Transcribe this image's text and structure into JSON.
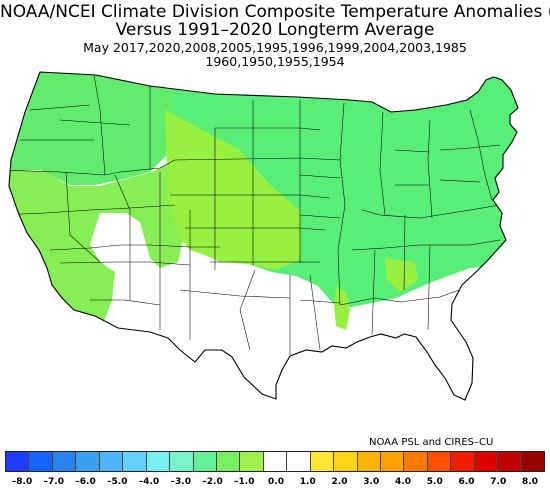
{
  "header": {
    "title_line1": "NOAA/NCEI Climate Division Composite Temperature Anomalies (F)",
    "title_line2": "Versus 1991–2020 Longterm Average",
    "years_line1": "May   2017,2020,2008,2005,1995,1996,1999,2004,2003,1985",
    "years_line2": "1960,1950,1955,1954"
  },
  "credit": "NOAA PSL and CIRES–CU",
  "map": {
    "region": "Contiguous United States climate divisions",
    "colors": {
      "warm_east": "#58ee78",
      "warm_north": "#62ec6e",
      "mild_west": "#88ee55",
      "mild_center": "#98f040",
      "near_normal": "#ffffff",
      "border": "#000000"
    }
  },
  "legend": {
    "colors": [
      "#1e3cff",
      "#1464ff",
      "#2882f0",
      "#3ca0f0",
      "#50b4fa",
      "#64d2ff",
      "#78f0f0",
      "#78f5c8",
      "#64f096",
      "#78f064",
      "#a0f050",
      "#ffffff",
      "#ffffff",
      "#ffe632",
      "#ffd214",
      "#ffb400",
      "#ffa000",
      "#ff7800",
      "#ff5000",
      "#f01e00",
      "#dc0000",
      "#be0000",
      "#960000"
    ],
    "tick_labels": [
      "–8.0",
      "–7.0",
      "–6.0",
      "–5.0",
      "–4.0",
      "–3.0",
      "–2.0",
      "–1.0",
      "0.0",
      "1.0",
      "2.0",
      "3.0",
      "4.0",
      "5.0",
      "6.0",
      "7.0",
      "8.0"
    ]
  }
}
